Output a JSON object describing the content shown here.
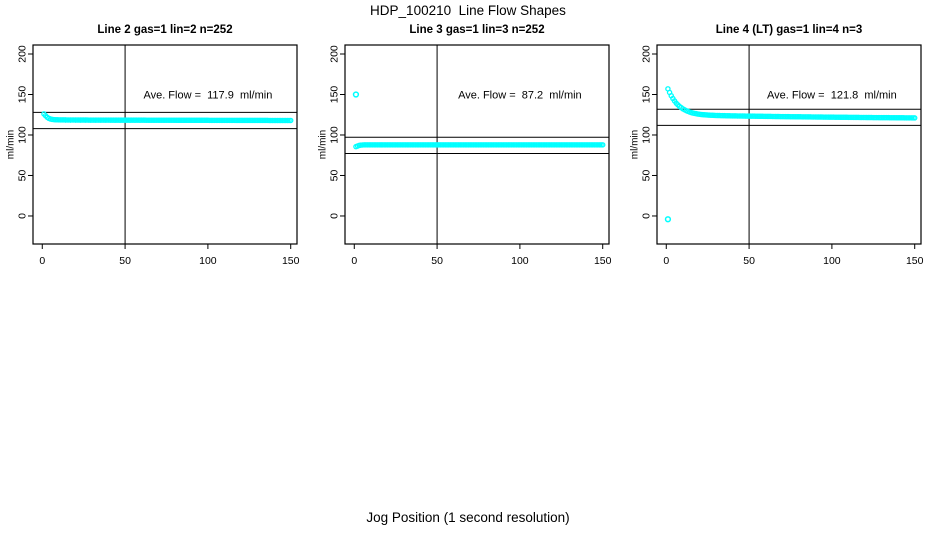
{
  "figure": {
    "title": "HDP_100210  Line Flow Shapes",
    "bottom_label": "Jog Position (1 second resolution)"
  },
  "chart_data": {
    "type": "scatter",
    "title": "HDP_100210  Line Flow Shapes",
    "xlabel": "Jog Position (1 second resolution)",
    "ylabel": "ml/min",
    "point_color": "#00FFFF",
    "axis_color": "#000000",
    "grid": false,
    "xlim": [
      -5.6,
      153.8
    ],
    "ylim": [
      -34.6,
      211.1
    ],
    "x_ticks": [
      0,
      50,
      100,
      150
    ],
    "y_ticks": [
      0,
      50,
      100,
      150,
      200
    ],
    "panels": [
      {
        "title": "Line 2 gas=1 lin=2 n=252",
        "ave_flow": 117.9,
        "annotation": "Ave. Flow =  117.9  ml/min",
        "annotation_at": [
          100,
          150
        ],
        "hline_values": [
          127.9,
          107.9
        ],
        "vline_value": 50,
        "main_series": {
          "x_start": 1,
          "x_end": 150,
          "step": 1,
          "radius": 2.1,
          "keypoints": [
            [
              1,
              126
            ],
            [
              2,
              123.8
            ],
            [
              3,
              121.8
            ],
            [
              4,
              120.5
            ],
            [
              5,
              119.7
            ],
            [
              6,
              119.2
            ],
            [
              8,
              118.8
            ],
            [
              12,
              118.6
            ],
            [
              30,
              118.4
            ],
            [
              80,
              118.2
            ],
            [
              150,
              117.9
            ]
          ]
        },
        "sparse_dots": {
          "x_start": 14,
          "x_end": 150,
          "step": 3,
          "y": 115.8,
          "radius": 0.7
        },
        "outliers": []
      },
      {
        "title": "Line 3 gas=1 lin=3 n=252",
        "ave_flow": 87.2,
        "annotation": "Ave. Flow =  87.2  ml/min",
        "annotation_at": [
          100,
          150
        ],
        "hline_values": [
          97.2,
          77.2
        ],
        "vline_value": 50,
        "main_series": {
          "x_start": 1,
          "x_end": 150,
          "step": 1,
          "radius": 2.1,
          "keypoints": [
            [
              1,
              85.6
            ],
            [
              2,
              86.4
            ],
            [
              3,
              87.1
            ],
            [
              4,
              87.5
            ],
            [
              6,
              87.8
            ],
            [
              150,
              87.8
            ]
          ]
        },
        "sparse_dots": null,
        "outliers": [
          [
            1,
            150
          ]
        ]
      },
      {
        "title": "Line 4 (LT) gas=1 lin=4 n=3",
        "ave_flow": 121.8,
        "annotation": "Ave. Flow =  121.8  ml/min",
        "annotation_at": [
          100,
          150
        ],
        "hline_values": [
          131.8,
          111.8
        ],
        "vline_value": 50,
        "main_series": {
          "x_start": 1,
          "x_end": 150,
          "step": 1,
          "radius": 2.1,
          "keypoints": [
            [
              1,
              157
            ],
            [
              2,
              152.5
            ],
            [
              3,
              148.5
            ],
            [
              4,
              145
            ],
            [
              5,
              142
            ],
            [
              6,
              139.3
            ],
            [
              7,
              137.2
            ],
            [
              8,
              135.3
            ],
            [
              10,
              132.3
            ],
            [
              12,
              130.1
            ],
            [
              14,
              128.4
            ],
            [
              16,
              127.1
            ],
            [
              19,
              125.9
            ],
            [
              22,
              125.1
            ],
            [
              26,
              124.5
            ],
            [
              30,
              124.1
            ],
            [
              40,
              123.6
            ],
            [
              50,
              123.3
            ],
            [
              70,
              122.7
            ],
            [
              100,
              122
            ],
            [
              125,
              121.5
            ],
            [
              150,
              121.1
            ]
          ]
        },
        "sparse_dots": null,
        "outliers": [
          [
            1,
            -4
          ]
        ]
      }
    ]
  }
}
